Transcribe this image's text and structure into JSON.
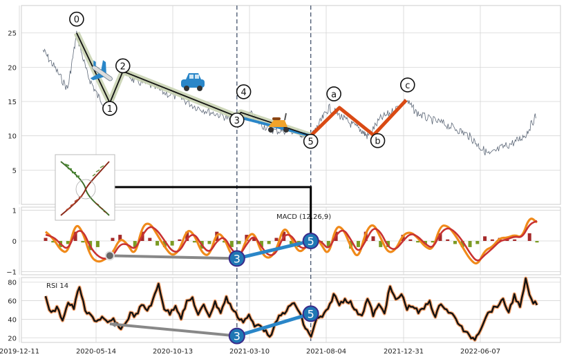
{
  "chart_data": [
    {
      "type": "line",
      "panel": "price",
      "ylim": [
        0,
        29
      ],
      "yticks": [
        5,
        10,
        15,
        20,
        25
      ],
      "ytick_labels": [
        "5",
        "10",
        "15",
        "20",
        "25"
      ],
      "xlim": [
        "2020-01-10",
        "2022-09-25"
      ],
      "grid": true,
      "series": [
        {
          "x": [
            "2020-01-13",
            "2020-02-05",
            "2020-03-02",
            "2020-03-20",
            "2020-04-10",
            "2020-05-01",
            "2020-05-25",
            "2020-06-20",
            "2020-07-13",
            "2020-08-10",
            "2020-09-10",
            "2020-10-13",
            "2020-11-10",
            "2020-12-10",
            "2021-01-10",
            "2021-02-02",
            "2021-02-10",
            "2021-03-01",
            "2021-03-25",
            "2021-04-20",
            "2021-05-15",
            "2021-06-10",
            "2021-06-29",
            "2021-07-15",
            "2021-08-04",
            "2021-08-25",
            "2021-09-15",
            "2021-10-06",
            "2021-10-20",
            "2021-11-15",
            "2021-12-10",
            "2022-01-05",
            "2022-01-25",
            "2022-02-20",
            "2022-03-20",
            "2022-04-15",
            "2022-05-10",
            "2022-05-30",
            "2022-06-20",
            "2022-07-15",
            "2022-08-10",
            "2022-08-31",
            "2022-09-20"
          ],
          "values": [
            22.5,
            20,
            16.8,
            24.8,
            19,
            15.8,
            13.8,
            19.8,
            18,
            17.5,
            16.3,
            15.5,
            14.3,
            13.5,
            12.8,
            11.5,
            11.9,
            13.2,
            11.5,
            10.7,
            10.8,
            10.3,
            9.8,
            11.6,
            14.1,
            13,
            11.8,
            10.9,
            9.9,
            12.5,
            13.6,
            15.2,
            13.4,
            12.4,
            11.8,
            11,
            10,
            8.5,
            7.2,
            8.3,
            9.1,
            10.2,
            12.9
          ]
        }
      ]
    },
    {
      "type": "bar",
      "panel": "macd",
      "ylim": [
        -1.1,
        1.1
      ],
      "yticks": [
        -1,
        0,
        1
      ],
      "ytick_labels": [
        "−1",
        "0",
        "1"
      ],
      "series": [
        {
          "name": "macd",
          "values": [
            0.3,
            0.1,
            -0.3,
            -0.4,
            0.6,
            0.3,
            -0.5,
            -0.7,
            -0.6,
            -0.4,
            0.1,
            -0.1,
            -0.5,
            0.5,
            0.6,
            0.2,
            -0.2,
            -0.5,
            -0.3,
            0.4,
            0.2,
            -0.4,
            -0.5,
            0.3,
            0.1,
            -0.5,
            -0.6,
            0.1,
            0.3,
            -0.4,
            -0.6,
            -0.3,
            0.5,
            0.1,
            -0.4,
            -0.2,
            0.2,
            -0.1,
            -0.5,
            0.5,
            0.4,
            -0.2,
            -0.6,
            0.3,
            0.6,
            0.1,
            -0.4,
            -0.3,
            0.2,
            0.3,
            0.1,
            -0.2,
            -0.3,
            0.5,
            0.5,
            0.2,
            -0.2,
            -0.6,
            -0.8,
            -0.3,
            -0.2,
            0.1,
            0.1,
            0.2,
            0.1,
            0.8,
            0.6
          ]
        },
        {
          "name": "signal",
          "values": [
            0.2,
            0.15,
            -0.1,
            -0.3,
            0.3,
            0.35,
            -0.2,
            -0.5,
            -0.6,
            -0.5,
            -0.1,
            -0.1,
            -0.3,
            0.2,
            0.5,
            0.35,
            0,
            -0.35,
            -0.35,
            0.1,
            0.25,
            -0.15,
            -0.4,
            0,
            0.15,
            -0.3,
            -0.5,
            -0.1,
            0.2,
            -0.2,
            -0.5,
            -0.4,
            0.2,
            0.2,
            -0.2,
            -0.25,
            0.05,
            0,
            -0.3,
            0.2,
            0.4,
            0.05,
            -0.4,
            0,
            0.45,
            0.3,
            -0.2,
            -0.3,
            0,
            0.25,
            0.15,
            -0.1,
            -0.25,
            0.25,
            0.45,
            0.3,
            0,
            -0.4,
            -0.7,
            -0.45,
            -0.25,
            0,
            0.05,
            0.15,
            0.1,
            0.55,
            0.65
          ]
        },
        {
          "name": "histogram",
          "values": [
            0.1,
            -0.05,
            -0.2,
            -0.1,
            0.3,
            -0.05,
            -0.3,
            -0.2,
            0,
            0.1,
            0.2,
            0,
            -0.2,
            0.3,
            0.1,
            -0.15,
            -0.2,
            -0.15,
            0.05,
            0.3,
            -0.05,
            -0.25,
            -0.1,
            0.3,
            -0.05,
            -0.2,
            -0.1,
            0.2,
            0.1,
            -0.2,
            -0.1,
            0.1,
            0.3,
            -0.1,
            -0.2,
            0.05,
            0.15,
            -0.1,
            -0.2,
            0.3,
            0,
            -0.25,
            -0.2,
            0.3,
            0.15,
            -0.2,
            -0.2,
            0,
            0.2,
            0.05,
            -0.05,
            -0.1,
            -0.05,
            0.25,
            0.05,
            -0.1,
            -0.2,
            -0.2,
            -0.1,
            0.15,
            0.05,
            0.1,
            0.05,
            0.05,
            0,
            0.25,
            -0.05
          ]
        }
      ]
    },
    {
      "type": "line",
      "panel": "rsi",
      "ylim": [
        15,
        85
      ],
      "yticks": [
        20,
        40,
        60,
        80
      ],
      "ytick_labels": [
        "20",
        "40",
        "60",
        "80"
      ],
      "series": [
        {
          "name": "rsi",
          "values": [
            64,
            46,
            52,
            40,
            58,
            52,
            76,
            48,
            44,
            38,
            42,
            35,
            40,
            30,
            34,
            46,
            44,
            55,
            50,
            60,
            78,
            52,
            46,
            55,
            42,
            58,
            63,
            44,
            55,
            44,
            58,
            48,
            63,
            52,
            43,
            38,
            44,
            32,
            35,
            26,
            22,
            40,
            46,
            52,
            58,
            46,
            30,
            22,
            40,
            43,
            50,
            67,
            56,
            62,
            58,
            48,
            45,
            62,
            45,
            55,
            48,
            75,
            60,
            67,
            52,
            55,
            47,
            52,
            60,
            42,
            58,
            50,
            45,
            37,
            28,
            22,
            19,
            30,
            44,
            50,
            55,
            60,
            48,
            66,
            52,
            82,
            60,
            56
          ]
        }
      ]
    }
  ],
  "x_axis": {
    "tick_labels": [
      "2019-12-11",
      "2020-05-14",
      "2020-10-13",
      "2021-03-10",
      "2021-08-04",
      "2021-12-31",
      "2022-06-07"
    ]
  },
  "elliott_waves": {
    "impulse_labels": [
      "0",
      "1",
      "2",
      "3",
      "4",
      "5"
    ],
    "impulse_points": [
      {
        "date": "2020-03-20",
        "price": 25.0
      },
      {
        "date": "2020-05-25",
        "price": 14.8
      },
      {
        "date": "2020-06-20",
        "price": 19.4
      },
      {
        "date": "2021-02-02",
        "price": 12.8
      },
      {
        "date": "2021-02-10",
        "price": 13.4
      },
      {
        "date": "2021-06-29",
        "price": 10.0
      }
    ],
    "correction_labels": [
      "a",
      "b",
      "c"
    ],
    "correction_points": [
      {
        "date": "2021-08-25",
        "price": 14.1
      },
      {
        "date": "2021-11-01",
        "price": 10.1
      },
      {
        "date": "2022-01-05",
        "price": 15.2
      }
    ]
  },
  "macd_panel": {
    "label": "MACD (12,26,9)"
  },
  "rsi_panel": {
    "label": "RSI 14"
  },
  "divergence": {
    "point_labels": [
      "3",
      "5"
    ],
    "macd_start": {
      "date": "2020-05-25",
      "value": -0.48
    },
    "macd_points": [
      {
        "date": "2021-02-02",
        "value": -0.57
      },
      {
        "date": "2021-06-29",
        "value": 0.0
      }
    ],
    "rsi_start": {
      "date": "2020-05-25",
      "value": 35
    },
    "rsi_points": [
      {
        "date": "2021-02-02",
        "value": 22
      },
      {
        "date": "2021-06-29",
        "value": 46
      }
    ]
  },
  "colors": {
    "price_line": "#5c6777",
    "impulse_line": "#111111",
    "impulse_halo": "#c9d3b3",
    "wave3_5_line": "#2a86c8",
    "correction_line": "#d94a14",
    "macd_line": "#f08a1a",
    "signal_line": "#c83232",
    "hist_positive": "#a52a2a",
    "hist_negative": "#7a9a23",
    "rsi_line": "#111111",
    "rsi_halo": "#f4a26c",
    "grey_divergence": "#888888",
    "badge_fill": "#1f77b4",
    "badge_stroke": "#3a2a8a",
    "vline": "#4f5d75",
    "grid": "#d5d5d5",
    "connector": "#000000"
  },
  "icons": [
    "airplane-icon",
    "car-icon",
    "scooter-icon",
    "plant-diagram-icon"
  ]
}
